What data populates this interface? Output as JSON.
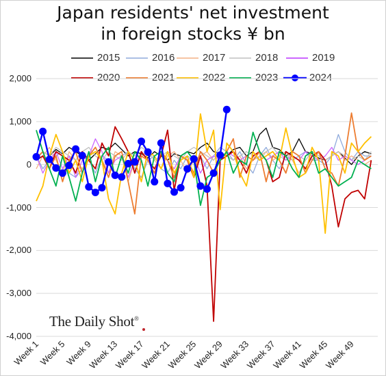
{
  "chart_data": {
    "type": "line",
    "title_line1": "Japan residents' net investment",
    "title_line2": "in foreign stocks ¥ bn",
    "ylim": [
      -4000,
      2000
    ],
    "y_ticks": [
      "2,000",
      "1,000",
      "0",
      "-1,000",
      "-2,000",
      "-3,000",
      "-4,000"
    ],
    "y_tick_values": [
      2000,
      1000,
      0,
      -1000,
      -2000,
      -3000,
      -4000
    ],
    "x_ticks": [
      "Week 1",
      "Week 5",
      "Week 9",
      "Week 13",
      "Week 17",
      "Week 21",
      "Week 25",
      "Week 29",
      "Week 33",
      "Week 37",
      "Week 41",
      "Week 45",
      "Week 49"
    ],
    "x_tick_weeks": [
      1,
      5,
      9,
      13,
      17,
      21,
      25,
      29,
      33,
      37,
      41,
      45,
      49
    ],
    "x_range": [
      1,
      53
    ],
    "grid": true,
    "legend_position": "top",
    "watermark": "The Daily Shot",
    "watermark_mark": "®",
    "series": [
      {
        "name": "2015",
        "color": "#000000",
        "width": 1.3,
        "markers": false,
        "values": [
          150,
          300,
          200,
          350,
          250,
          400,
          300,
          200,
          100,
          250,
          400,
          350,
          500,
          350,
          200,
          300,
          250,
          150,
          300,
          200,
          100,
          250,
          200,
          300,
          250,
          400,
          500,
          300,
          250,
          200,
          350,
          400,
          200,
          300,
          700,
          850,
          400,
          350,
          200,
          300,
          600,
          300,
          250,
          150,
          100,
          200,
          300,
          150,
          0,
          200,
          300,
          250
        ]
      },
      {
        "name": "2016",
        "color": "#8faadc",
        "width": 1.3,
        "markers": false,
        "values": [
          200,
          -100,
          100,
          200,
          300,
          -200,
          -300,
          -100,
          100,
          -200,
          200,
          100,
          -300,
          200,
          300,
          -100,
          -300,
          100,
          200,
          -100,
          -200,
          100,
          -100,
          200,
          100,
          200,
          -100,
          200,
          400,
          300,
          100,
          300,
          0,
          -200,
          200,
          400,
          100,
          -100,
          200,
          100,
          200,
          300,
          100,
          100,
          0,
          200,
          700,
          300,
          100,
          300,
          200,
          200
        ]
      },
      {
        "name": "2017",
        "color": "#f4b183",
        "width": 1.3,
        "markers": false,
        "values": [
          -100,
          200,
          400,
          100,
          -200,
          300,
          100,
          -100,
          200,
          400,
          100,
          -200,
          300,
          200,
          -400,
          100,
          200,
          300,
          100,
          -100,
          200,
          300,
          100,
          -200,
          100,
          200,
          300,
          100,
          300,
          200,
          100,
          200,
          -100,
          100,
          200,
          300,
          100,
          200,
          300,
          100,
          -200,
          100,
          300,
          200,
          100,
          200,
          300,
          100,
          200,
          100,
          0,
          100
        ]
      },
      {
        "name": "2018",
        "color": "#bfbfbf",
        "width": 1.3,
        "markers": false,
        "values": [
          100,
          300,
          200,
          400,
          300,
          200,
          100,
          300,
          400,
          200,
          100,
          300,
          200,
          100,
          300,
          200,
          400,
          300,
          100,
          200,
          300,
          200,
          100,
          300,
          400,
          300,
          200,
          100,
          300,
          200,
          100,
          200,
          300,
          200,
          100,
          300,
          400,
          200,
          100,
          300,
          200,
          100,
          300,
          200,
          100,
          200,
          300,
          200,
          100,
          200,
          100,
          300
        ]
      },
      {
        "name": "2019",
        "color": "#cc66ff",
        "width": 1.3,
        "markers": false,
        "values": [
          200,
          -200,
          100,
          300,
          -100,
          200,
          -300,
          100,
          200,
          600,
          300,
          -200,
          100,
          200,
          -300,
          100,
          200,
          100,
          -200,
          300,
          100,
          -100,
          200,
          100,
          200,
          -200,
          100,
          200,
          100,
          300,
          200,
          100,
          200,
          100,
          300,
          100,
          200,
          300,
          100,
          200,
          100,
          300,
          200,
          100,
          200,
          400,
          100,
          200,
          100,
          0,
          100,
          200
        ]
      },
      {
        "name": "2020",
        "color": "#c00000",
        "width": 1.8,
        "markers": false,
        "values": [
          100,
          200,
          -100,
          300,
          200,
          100,
          -200,
          300,
          100,
          -100,
          500,
          200,
          880,
          600,
          300,
          -200,
          300,
          100,
          -100,
          200,
          800,
          -600,
          200,
          100,
          -300,
          200,
          -500,
          -3650,
          100,
          200,
          300,
          100,
          -200,
          200,
          300,
          100,
          -400,
          -300,
          300,
          200,
          100,
          -100,
          200,
          300,
          100,
          -500,
          -1450,
          -800,
          -650,
          -600,
          -800,
          100
        ]
      },
      {
        "name": "2021",
        "color": "#ed7d31",
        "width": 1.8,
        "markers": false,
        "values": [
          150,
          300,
          -100,
          200,
          -400,
          100,
          300,
          -200,
          200,
          400,
          100,
          -300,
          200,
          300,
          -400,
          -1150,
          200,
          100,
          -200,
          300,
          100,
          -300,
          200,
          100,
          -200,
          300,
          100,
          -200,
          100,
          300,
          600,
          -300,
          200,
          100,
          300,
          -400,
          200,
          100,
          -200,
          300,
          200,
          -200,
          100,
          300,
          -100,
          -200,
          -500,
          200,
          1200,
          300,
          100,
          200
        ]
      },
      {
        "name": "2022",
        "color": "#ffc000",
        "width": 1.8,
        "markers": false,
        "values": [
          -850,
          -500,
          200,
          700,
          300,
          -200,
          100,
          -400,
          200,
          300,
          100,
          -800,
          -1150,
          -200,
          300,
          100,
          -400,
          300,
          200,
          -100,
          300,
          -200,
          100,
          200,
          -300,
          1180,
          300,
          800,
          -1050,
          500,
          300,
          -200,
          -500,
          300,
          100,
          200,
          300,
          100,
          850,
          200,
          -300,
          -200,
          400,
          100,
          -1600,
          300,
          200,
          -200,
          500,
          300,
          500,
          650
        ]
      },
      {
        "name": "2023",
        "color": "#00b050",
        "width": 1.8,
        "markers": false,
        "values": [
          800,
          300,
          -100,
          -500,
          200,
          -300,
          -850,
          -200,
          300,
          -400,
          200,
          400,
          -300,
          200,
          -200,
          300,
          100,
          -500,
          200,
          300,
          -200,
          -400,
          200,
          300,
          100,
          -950,
          -300,
          -200,
          100,
          300,
          -200,
          100,
          0,
          750,
          300,
          100,
          -300,
          300,
          200,
          -100,
          -300,
          200,
          300,
          -200,
          -100,
          -300,
          -500,
          -400,
          -300,
          100,
          0,
          -100
        ]
      },
      {
        "name": "2024",
        "color": "#0000ff",
        "width": 2.4,
        "markers": true,
        "values": [
          180,
          770,
          120,
          -80,
          -200,
          -20,
          360,
          210,
          -520,
          -650,
          -540,
          60,
          -250,
          -290,
          20,
          60,
          540,
          290,
          -400,
          500,
          -440,
          -640,
          -540,
          -100,
          130,
          -500,
          -570,
          -200,
          220,
          1280
        ]
      }
    ]
  }
}
